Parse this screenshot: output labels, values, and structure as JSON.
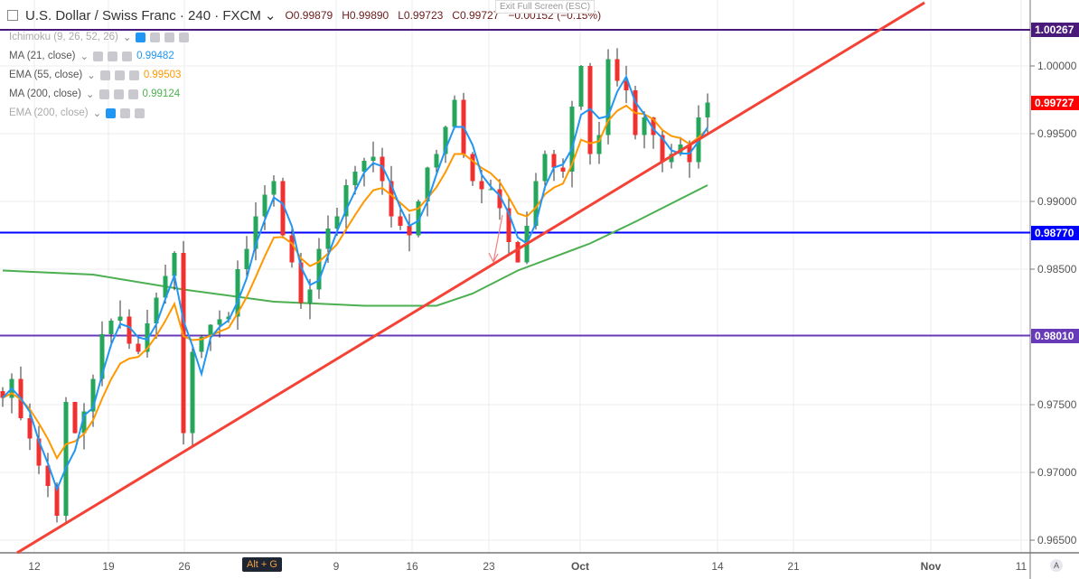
{
  "header": {
    "symbol": "U.S. Dollar / Swiss Franc · 240 · FXCM",
    "open": "O0.99879",
    "high": "H0.99890",
    "low": "L0.99723",
    "close": "C0.99727",
    "change": "−0.00152 (−0.15%)",
    "exit_fullscreen": "Exit Full Screen (ESC)"
  },
  "indicators": [
    {
      "label": "Ichimoku (9, 26, 52, 26)",
      "value": "",
      "color": "#999999"
    },
    {
      "label": "MA (21, close)",
      "value": "0.99482",
      "color": "#2196f3"
    },
    {
      "label": "EMA (55, close)",
      "value": "0.99503",
      "color": "#ff9800"
    },
    {
      "label": "MA (200, close)",
      "value": "0.99124",
      "color": "#4caf50"
    },
    {
      "label": "EMA (200, close)",
      "value": "",
      "color": "#999999"
    }
  ],
  "price_tags": [
    {
      "label": "1.00267",
      "price": 1.00267,
      "color": "#4a1a7a"
    },
    {
      "label": "0.99727",
      "price": 0.99727,
      "color": "#ff0000"
    },
    {
      "label": "0.98770",
      "price": 0.9877,
      "color": "#0000ff"
    },
    {
      "label": "0.98010",
      "price": 0.9801,
      "color": "#673ab7"
    }
  ],
  "shortcut": {
    "alt": "Alt",
    "plus": "+",
    "g": "G"
  },
  "auto_button": "A",
  "chart_data": {
    "type": "candlestick",
    "title": "U.S. Dollar / Swiss Franc 240 FXCM",
    "ylim": [
      0.9638,
      1.0047
    ],
    "y_ticks": [
      "1.00000",
      "0.99500",
      "0.99000",
      "0.98500",
      "0.97500",
      "0.97000",
      "0.96500"
    ],
    "x_ticks": [
      {
        "label": "12",
        "i": 3.5
      },
      {
        "label": "19",
        "i": 11.7
      },
      {
        "label": "26",
        "i": 20.1
      },
      {
        "label": "9",
        "i": 36.9
      },
      {
        "label": "16",
        "i": 45.3
      },
      {
        "label": "23",
        "i": 53.8
      },
      {
        "label": "Oct",
        "i": 63.9
      },
      {
        "label": "14",
        "i": 79.1
      },
      {
        "label": "21",
        "i": 87.5
      },
      {
        "label": "Nov",
        "i": 102.7
      },
      {
        "label": "11",
        "i": 112.7
      }
    ],
    "closes": [
      0.9755,
      0.9769,
      0.974,
      0.9725,
      0.9705,
      0.969,
      0.9668,
      0.9752,
      0.9729,
      0.9745,
      0.9769,
      0.9802,
      0.9812,
      0.9815,
      0.9795,
      0.9789,
      0.981,
      0.9829,
      0.9845,
      0.9862,
      0.9729,
      0.9789,
      0.98,
      0.9809,
      0.9813,
      0.9815,
      0.985,
      0.9865,
      0.9889,
      0.9905,
      0.9915,
      0.9875,
      0.9855,
      0.9825,
      0.9835,
      0.9865,
      0.988,
      0.9889,
      0.9912,
      0.9922,
      0.993,
      0.9933,
      0.9915,
      0.9889,
      0.9882,
      0.9875,
      0.99,
      0.9925,
      0.9935,
      0.9955,
      0.9975,
      0.9935,
      0.9915,
      0.9909,
      0.9909,
      0.9895,
      0.987,
      0.9855,
      0.9882,
      0.9915,
      0.9935,
      0.9925,
      0.9922,
      0.997,
      1.0,
      0.9935,
      0.9949,
      1.0005,
      0.9989,
      0.9982,
      0.9949,
      0.9962,
      0.9949,
      0.9929,
      0.9935,
      0.9942,
      0.9929,
      0.9962,
      0.9973
    ],
    "ma200": [
      [
        0,
        0.9849
      ],
      [
        10,
        0.9846
      ],
      [
        20,
        0.9835
      ],
      [
        30,
        0.9826
      ],
      [
        40,
        0.9823
      ],
      [
        48,
        0.9823
      ],
      [
        52,
        0.9832
      ],
      [
        57,
        0.9849
      ],
      [
        65,
        0.9869
      ],
      [
        70,
        0.9885
      ],
      [
        78,
        0.9912
      ]
    ],
    "trendline": [
      [
        1.6,
        0.96407
      ],
      [
        102,
        1.00467
      ]
    ],
    "horizontal_lines": [
      1.00267,
      0.9877,
      0.9801
    ],
    "colors": {
      "up": "#26a65b",
      "down": "#f23030",
      "ma21": "#2196f3",
      "ema55": "#ff9800",
      "ma200": "#4caf50",
      "trend": "#f44336"
    }
  }
}
